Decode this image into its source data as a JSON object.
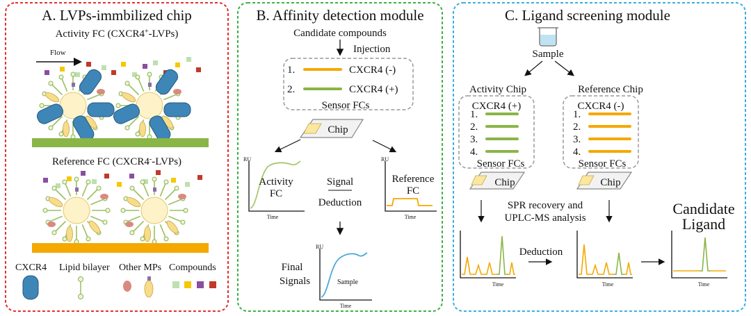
{
  "panel_a": {
    "title": "A. LVPs-immbilized chip",
    "activity_fc_label": "Activity FC (CXCR4",
    "activity_fc_sup": "+",
    "activity_fc_tail": "-LVPs)",
    "flow_label": "Flow",
    "reference_fc_label": "Reference FC (CXCR4",
    "reference_fc_sup": "-",
    "reference_fc_tail": "-LVPs)",
    "legend": [
      "CXCR4",
      "Lipid bilayer",
      "Other MPs",
      "Compounds"
    ]
  },
  "panel_b": {
    "title": "B. Affinity detection module",
    "candidate_compounds": "Candidate compounds",
    "injection": "Injection",
    "channels": [
      {
        "num": "1.",
        "label": "CXCR4 (-)",
        "color": "#f5a800"
      },
      {
        "num": "2.",
        "label": "CXCR4 (+)",
        "color": "#8ab547"
      }
    ],
    "sensor_fcs": "Sensor FCs",
    "chip": "Chip",
    "ru_label": "RU",
    "time_label": "Time",
    "activity_fc_line1": "Activity",
    "activity_fc_line2": "FC",
    "reference_fc_line1": "Reference",
    "reference_fc_line2": "FC",
    "signal": "Signal",
    "deduction": "Deduction",
    "final_signals_line1": "Final",
    "final_signals_line2": "Signals",
    "sample": "Sample"
  },
  "panel_c": {
    "title": "C. Ligand screening module",
    "sample": "Sample",
    "activity_chip": "Activity Chip",
    "reference_chip": "Reference Chip",
    "activity_cxcr4": "CXCR4 (+)",
    "reference_cxcr4": "CXCR4 (-)",
    "rows": [
      "1.",
      "2.",
      "3.",
      "4."
    ],
    "sensor_fcs": "Sensor FCs",
    "chip": "Chip",
    "spr_line1": "SPR recovery and",
    "spr_line2": "UPLC-MS analysis",
    "deduction": "Deduction",
    "candidate_line1": "Candidate",
    "candidate_line2": "Ligand",
    "time_label": "Time"
  },
  "colors": {
    "panel_a_border": "#e03030",
    "panel_b_border": "#3cb043",
    "panel_c_border": "#3aaee0",
    "green": "#8ab547",
    "orange": "#f5a800",
    "blue_trace": "#4aa8d8",
    "receptor_blue": "#3e86b8",
    "vesicle_yellow": "#fbe7a0"
  }
}
